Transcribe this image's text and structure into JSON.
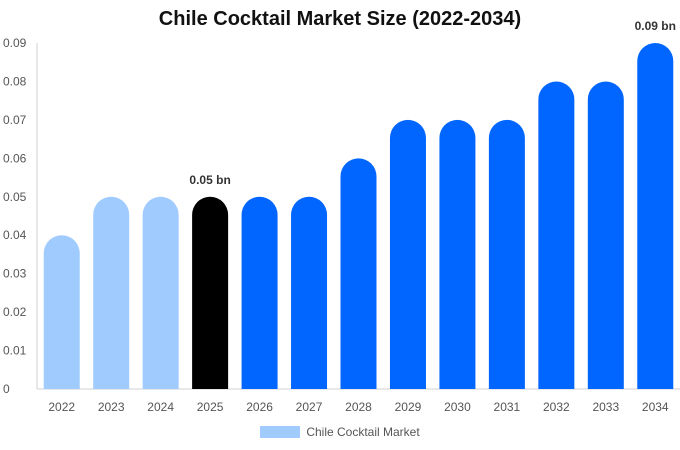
{
  "chart_data": {
    "type": "bar",
    "title": "Chile Cocktail Market Size (2022-2034)",
    "categories": [
      "2022",
      "2023",
      "2024",
      "2025",
      "2026",
      "2027",
      "2028",
      "2029",
      "2030",
      "2031",
      "2032",
      "2033",
      "2034"
    ],
    "series": [
      {
        "name": "Chile Cocktail Market",
        "values": [
          0.04,
          0.05,
          0.05,
          0.05,
          0.05,
          0.05,
          0.06,
          0.07,
          0.07,
          0.07,
          0.08,
          0.08,
          0.09
        ]
      }
    ],
    "ylim": [
      0,
      0.09
    ],
    "yticks": [
      "0",
      "0.01",
      "0.02",
      "0.03",
      "0.04",
      "0.05",
      "0.06",
      "0.07",
      "0.08",
      "0.09"
    ],
    "bar_colors": [
      "#a0cbff",
      "#a0cbff",
      "#a0cbff",
      "#000000",
      "#0066ff",
      "#0066ff",
      "#0066ff",
      "#0066ff",
      "#0066ff",
      "#0066ff",
      "#0066ff",
      "#0066ff",
      "#0066ff"
    ],
    "legend_color": "#a0cbff",
    "legend_position": "bottom-center",
    "grid": false,
    "annotations": [
      {
        "category": "2025",
        "text": "0.05 bn"
      },
      {
        "category": "2034",
        "text": "0.09 bn"
      }
    ]
  }
}
